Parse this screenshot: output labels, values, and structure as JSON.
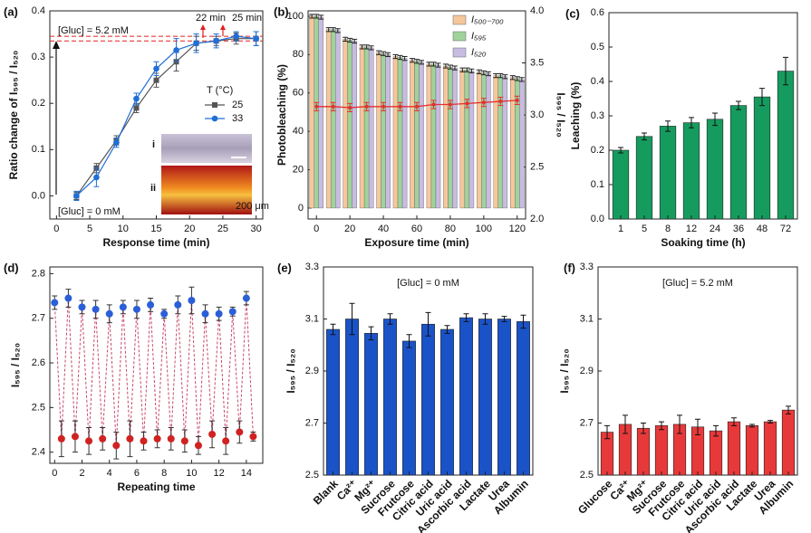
{
  "chart_data": [
    {
      "type": "line",
      "panel_label": "(a)",
      "x_label": "Response time (min)",
      "y_label": "Ratio change of I₅₉₅ / I₅₂₀",
      "legend_title": "T (°C)",
      "annotations": [
        "[Gluc] = 5.2 mM",
        "[Gluc] = 0 mM",
        "22 min",
        "25 min",
        "i",
        "ii",
        "200 μm"
      ],
      "hlines": [
        0.335,
        0.345
      ],
      "x": [
        3,
        6,
        9,
        12,
        15,
        18,
        21,
        24,
        27,
        30
      ],
      "series": [
        {
          "name": "25",
          "color": "#555555",
          "marker": "square",
          "values": [
            0,
            0.06,
            0.12,
            0.19,
            0.25,
            0.29,
            0.33,
            0.335,
            0.34,
            0.34
          ],
          "errors": [
            0.008,
            0.01,
            0.01,
            0.01,
            0.015,
            0.02,
            0.015,
            0.01,
            0.012,
            0.015
          ]
        },
        {
          "name": "33",
          "color": "#1f6fd6",
          "marker": "circle",
          "values": [
            0,
            0.04,
            0.115,
            0.21,
            0.275,
            0.315,
            0.33,
            0.335,
            0.345,
            0.34
          ],
          "errors": [
            0.01,
            0.02,
            0.01,
            0.012,
            0.015,
            0.025,
            0.02,
            0.015,
            0.01,
            0.015
          ]
        }
      ],
      "xlim": [
        -1,
        31
      ],
      "ylim": [
        -0.05,
        0.4
      ],
      "xticks": [
        0,
        5,
        10,
        15,
        20,
        25,
        30
      ],
      "yticks": [
        {
          "value": 0,
          "label": "0.0"
        },
        0.1,
        0.2,
        0.3,
        0.4
      ]
    },
    {
      "type": "bar",
      "panel_label": "(b)",
      "x_label": "Exposure time (min)",
      "y_label": "Photobleaching (%)",
      "y2_label": "I₅₉₅ / I₅₂₀",
      "x": [
        0,
        10,
        20,
        30,
        40,
        50,
        60,
        70,
        80,
        90,
        100,
        110,
        120
      ],
      "series": [
        {
          "name": "I₅₀₀₋₇₀₀",
          "color": "#f6c79b",
          "values": [
            100,
            93,
            88,
            84,
            81,
            79,
            77,
            75,
            74,
            72,
            71,
            69,
            68
          ],
          "errors": [
            1,
            1,
            1,
            1,
            1,
            1,
            1,
            1,
            1,
            1,
            1,
            1,
            1
          ]
        },
        {
          "name": "I₅₉₅",
          "color": "#9fd39b",
          "values": [
            100,
            93,
            87.5,
            84,
            80.5,
            78.5,
            76.5,
            75,
            73.5,
            72,
            70.5,
            69,
            67.5
          ],
          "errors": [
            1,
            1,
            1,
            1,
            1,
            1,
            1,
            1,
            1,
            1,
            1,
            1,
            1
          ]
        },
        {
          "name": "I₅₂₀",
          "color": "#c9bce2",
          "values": [
            99.5,
            92.5,
            87,
            83.5,
            80,
            78,
            76,
            74.5,
            73,
            71.5,
            70,
            68.5,
            67
          ],
          "errors": [
            1,
            1,
            1,
            1,
            1,
            1,
            1,
            1,
            1,
            1,
            1,
            1,
            1
          ]
        }
      ],
      "y2_series": {
        "color": "#e53030",
        "values": [
          3.08,
          3.08,
          3.07,
          3.08,
          3.08,
          3.08,
          3.08,
          3.1,
          3.1,
          3.11,
          3.12,
          3.13,
          3.14
        ],
        "errors": [
          0.04,
          0.04,
          0.04,
          0.04,
          0.04,
          0.04,
          0.04,
          0.04,
          0.04,
          0.04,
          0.04,
          0.04,
          0.04
        ]
      },
      "xlim": [
        -5,
        125
      ],
      "ylim": [
        -5.7,
        102.8
      ],
      "y2lim": [
        2,
        4
      ],
      "xticks": [
        0,
        20,
        40,
        60,
        80,
        100,
        120
      ],
      "yticks": [
        0,
        20,
        40,
        60,
        80,
        100
      ],
      "y2ticks": [
        {
          "value": 2,
          "label": "2.0"
        },
        2.5,
        {
          "value": 3,
          "label": "3.0"
        },
        3.5,
        {
          "value": 4,
          "label": "4.0"
        }
      ]
    },
    {
      "type": "bar",
      "panel_label": "(c)",
      "x_label": "Soaking time (h)",
      "y_label": "Leaching (%)",
      "color": "#169b5e",
      "categories": [
        "1",
        "5",
        "8",
        "12",
        "24",
        "36",
        "48",
        "72"
      ],
      "values": [
        0.2,
        0.24,
        0.27,
        0.28,
        0.29,
        0.33,
        0.355,
        0.43
      ],
      "errors": [
        0.008,
        0.01,
        0.015,
        0.015,
        0.018,
        0.012,
        0.025,
        0.04
      ],
      "ylim": [
        0,
        0.6
      ],
      "yticks": [
        {
          "value": 0,
          "label": "0.0"
        },
        0.1,
        0.2,
        0.3,
        0.4,
        0.5,
        0.6
      ]
    },
    {
      "type": "line",
      "panel_label": "(d)",
      "x_label": "Repeating time",
      "y_label": "I₅₉₅ / I₅₂₀",
      "line_color": "#c84a6a",
      "point_colors": [
        "#2b5fd8",
        "#d02222"
      ],
      "x": [
        0,
        0.5,
        1,
        1.5,
        2,
        2.5,
        3,
        3.5,
        4,
        4.5,
        5,
        5.5,
        6,
        6.5,
        7,
        7.5,
        8,
        8.5,
        9,
        9.5,
        10,
        10.5,
        11,
        11.5,
        12,
        12.5,
        13,
        13.5,
        14,
        14.5
      ],
      "values": [
        2.735,
        2.43,
        2.745,
        2.435,
        2.725,
        2.425,
        2.72,
        2.43,
        2.71,
        2.415,
        2.725,
        2.43,
        2.72,
        2.425,
        2.73,
        2.43,
        2.71,
        2.43,
        2.73,
        2.425,
        2.74,
        2.415,
        2.71,
        2.44,
        2.71,
        2.425,
        2.715,
        2.445,
        2.745,
        2.435
      ],
      "errors": [
        0.015,
        0.04,
        0.02,
        0.035,
        0.015,
        0.03,
        0.02,
        0.025,
        0.02,
        0.03,
        0.015,
        0.04,
        0.02,
        0.02,
        0.015,
        0.02,
        0.01,
        0.025,
        0.02,
        0.025,
        0.03,
        0.02,
        0.02,
        0.03,
        0.015,
        0.03,
        0.01,
        0.025,
        0.015,
        0.01
      ],
      "xlim": [
        -0.35,
        15.2
      ],
      "ylim": [
        2.375,
        2.815
      ],
      "xticks": [
        0,
        2,
        4,
        6,
        8,
        10,
        12,
        14
      ],
      "yticks": [
        2.4,
        2.5,
        2.6,
        2.7,
        2.8
      ]
    },
    {
      "type": "bar",
      "panel_label": "(e)",
      "y_label": "I₅₉₅ / I₅₂₀",
      "annotation": "[Gluc] = 0 mM",
      "color": "#1a53c8",
      "categories": [
        "Blank",
        "Ca²⁺",
        "Mg²⁺",
        "Sucrose",
        "Frutcose",
        "Citric acid",
        "Uric acid",
        "Ascorbic acid",
        "Lactate",
        "Urea",
        "Albumin"
      ],
      "values": [
        3.06,
        3.1,
        3.045,
        3.1,
        3.015,
        3.08,
        3.06,
        3.105,
        3.1,
        3.1,
        3.09
      ],
      "errors": [
        0.02,
        0.06,
        0.025,
        0.02,
        0.025,
        0.045,
        0.015,
        0.015,
        0.02,
        0.01,
        0.025
      ],
      "ylim": [
        2.5,
        3.3
      ],
      "yticks": [
        2.5,
        2.7,
        2.9,
        3.1,
        3.3
      ]
    },
    {
      "type": "bar",
      "panel_label": "(f)",
      "y_label": "I₅₉₅ / I₅₂₀",
      "annotation": "[Gluc] = 5.2 mM",
      "color": "#e8393a",
      "categories": [
        "Glucose",
        "Ca²⁺",
        "Mg²⁺",
        "Sucrose",
        "Frutcose",
        "Citric acid",
        "Uric acid",
        "Ascorbic acid",
        "Lactate",
        "Urea",
        "Albumin"
      ],
      "values": [
        2.665,
        2.695,
        2.68,
        2.69,
        2.695,
        2.685,
        2.67,
        2.705,
        2.69,
        2.705,
        2.75
      ],
      "errors": [
        0.025,
        0.035,
        0.02,
        0.015,
        0.035,
        0.03,
        0.02,
        0.015,
        0.005,
        0.005,
        0.015
      ],
      "ylim": [
        2.5,
        3.3
      ],
      "yticks": [
        2.5,
        2.7,
        2.9,
        3.1,
        3.3
      ]
    }
  ]
}
